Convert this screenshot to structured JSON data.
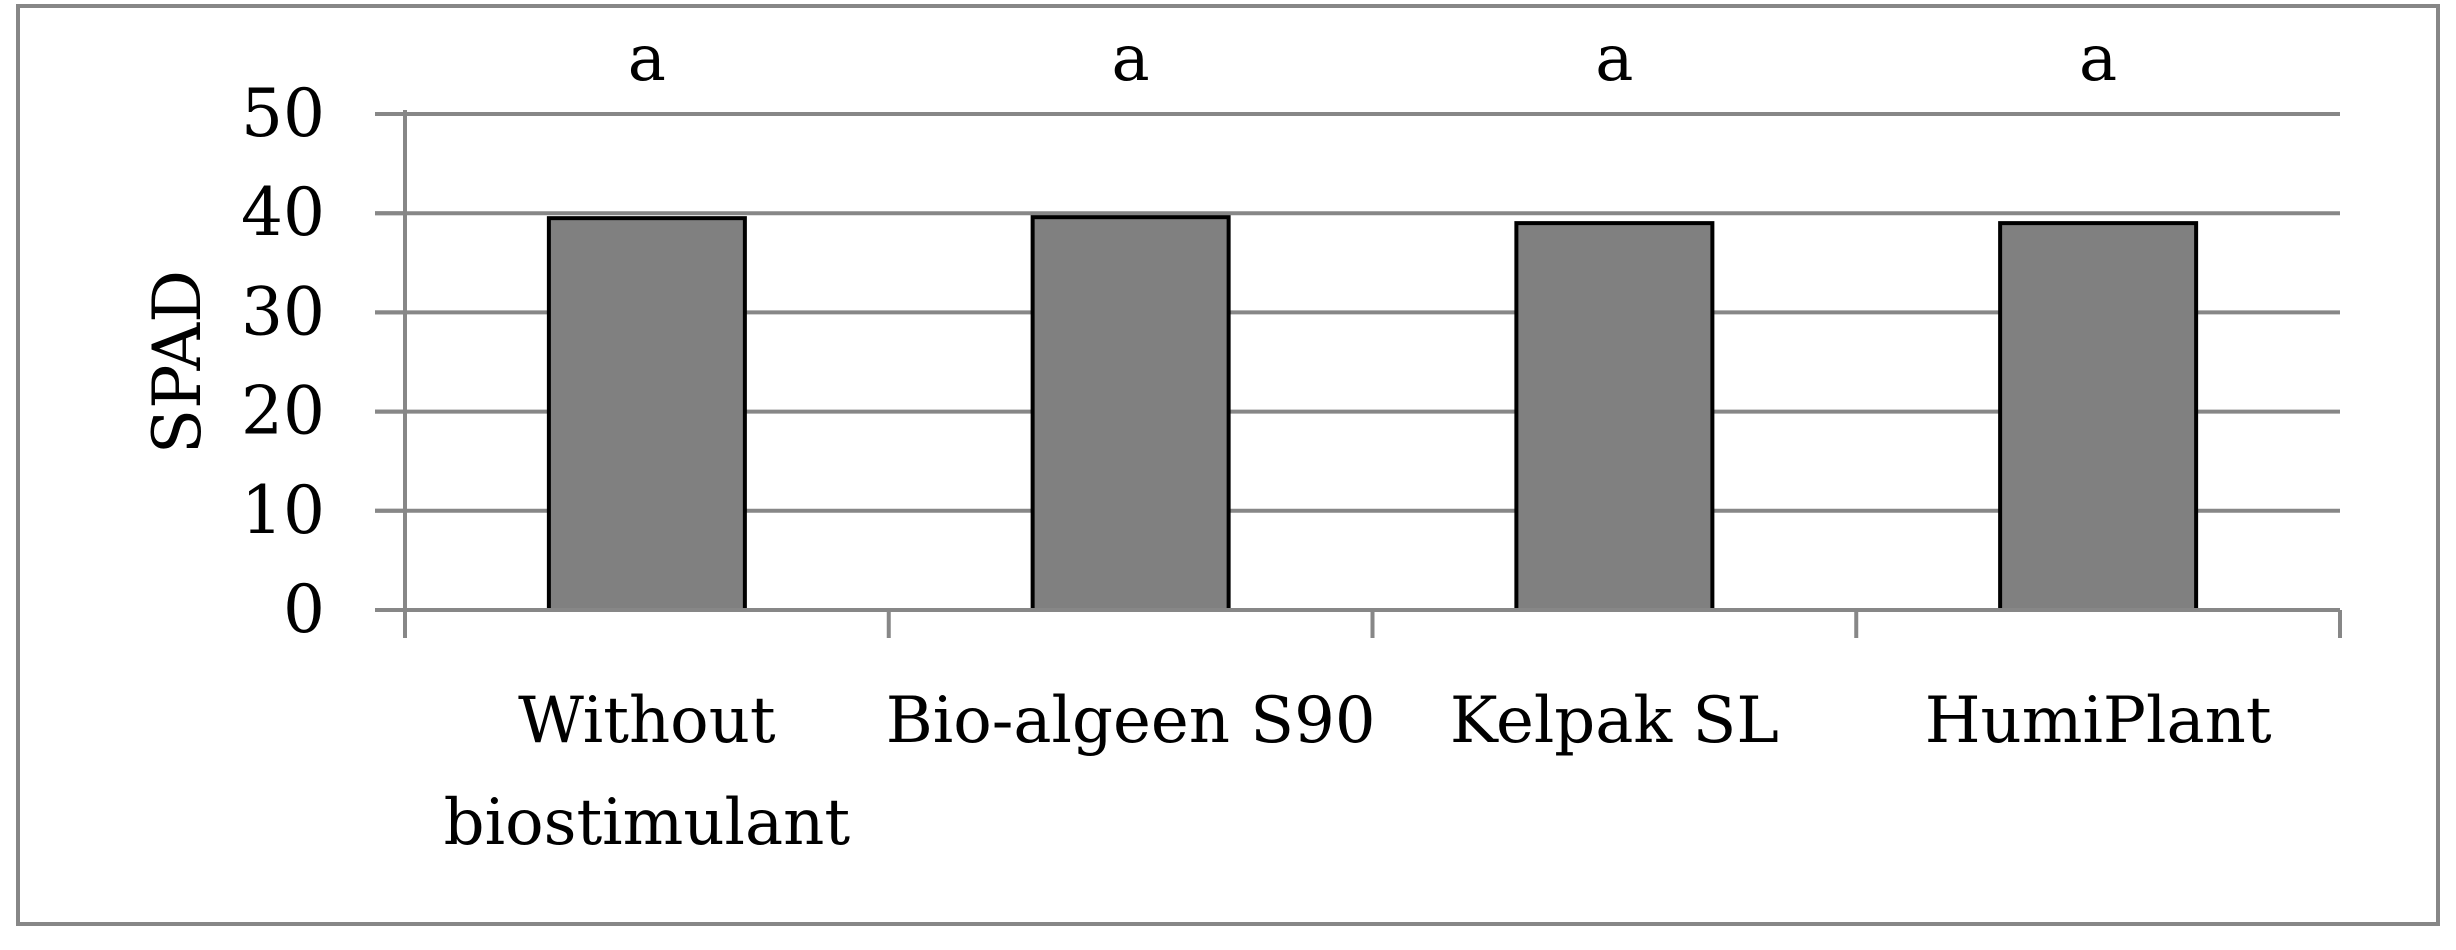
{
  "chart_data": {
    "type": "bar",
    "title": "",
    "xlabel": "",
    "ylabel": "SPAD",
    "ylim": [
      0,
      50
    ],
    "yticks": [
      0,
      10,
      20,
      30,
      40,
      50
    ],
    "grid": true,
    "legend": "none",
    "categories": [
      [
        "Without",
        "biostimulant"
      ],
      [
        "Bio-algeen S90"
      ],
      [
        "Kelpak SL"
      ],
      [
        "HumiPlant"
      ]
    ],
    "values": [
      39.5,
      39.6,
      39.0,
      39.0
    ],
    "annotations": [
      "a",
      "a",
      "a",
      "a"
    ],
    "bar_color": "#808080",
    "bar_edge_color": "#000000",
    "grid_color": "#878787"
  }
}
